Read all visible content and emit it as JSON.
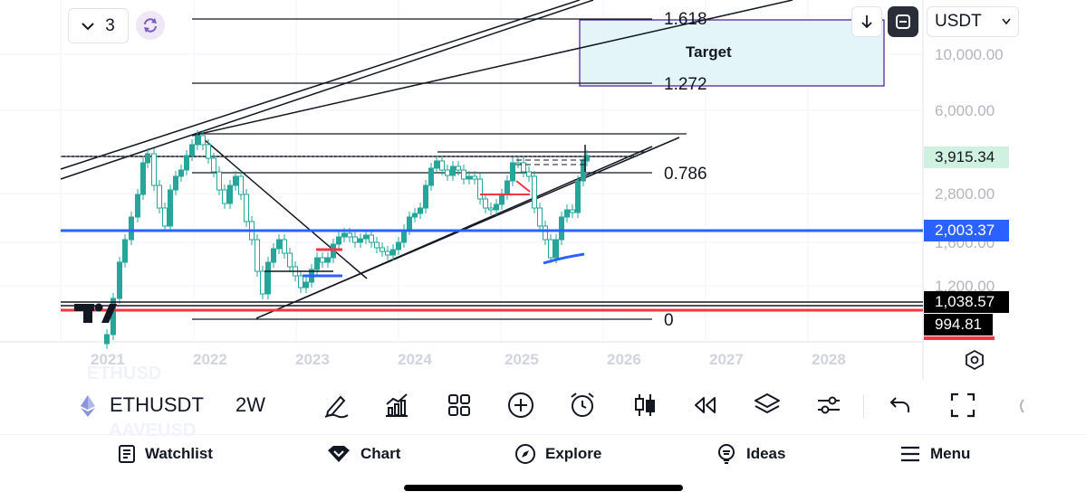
{
  "top_bar": {
    "interval_count": "3",
    "currency": "USDT",
    "currency_chevron": "chevron-down-icon"
  },
  "price_axis": {
    "labels": [
      "10,000.00",
      "6,000.00",
      "2,800.00",
      "1,600.00",
      "1,200.00"
    ],
    "current_price": "3,915.34",
    "blue_line_price": "2,003.37",
    "black_line_price": "1,038.57",
    "red_line_price": "994.81"
  },
  "time_axis": {
    "years": [
      "2021",
      "2022",
      "2023",
      "2024",
      "2025",
      "2026",
      "2027",
      "2028"
    ]
  },
  "annotations": {
    "fib_1618": "1.618",
    "fib_1272": "1.272",
    "fib_0786": "0.786",
    "fib_0": "0",
    "target_label": "Target"
  },
  "symbol_bar": {
    "symbol": "ETHUSDT",
    "interval": "2W",
    "faded_above": "ETHUSD",
    "faded_below": "AAVEUSD"
  },
  "bottom_nav": {
    "watchlist": "Watchlist",
    "chart": "Chart",
    "explore": "Explore",
    "ideas": "Ideas",
    "menu": "Menu"
  },
  "colors": {
    "accent_blue": "#2962ff",
    "current_price_bg": "#d1f1e0",
    "current_price_text": "#089981",
    "target_box_bg": "#e3f5f8",
    "target_box_border": "#4a148c",
    "candle_green": "#26a69a",
    "red_line": "#f23645",
    "sync_purple": "#7e57c2"
  }
}
